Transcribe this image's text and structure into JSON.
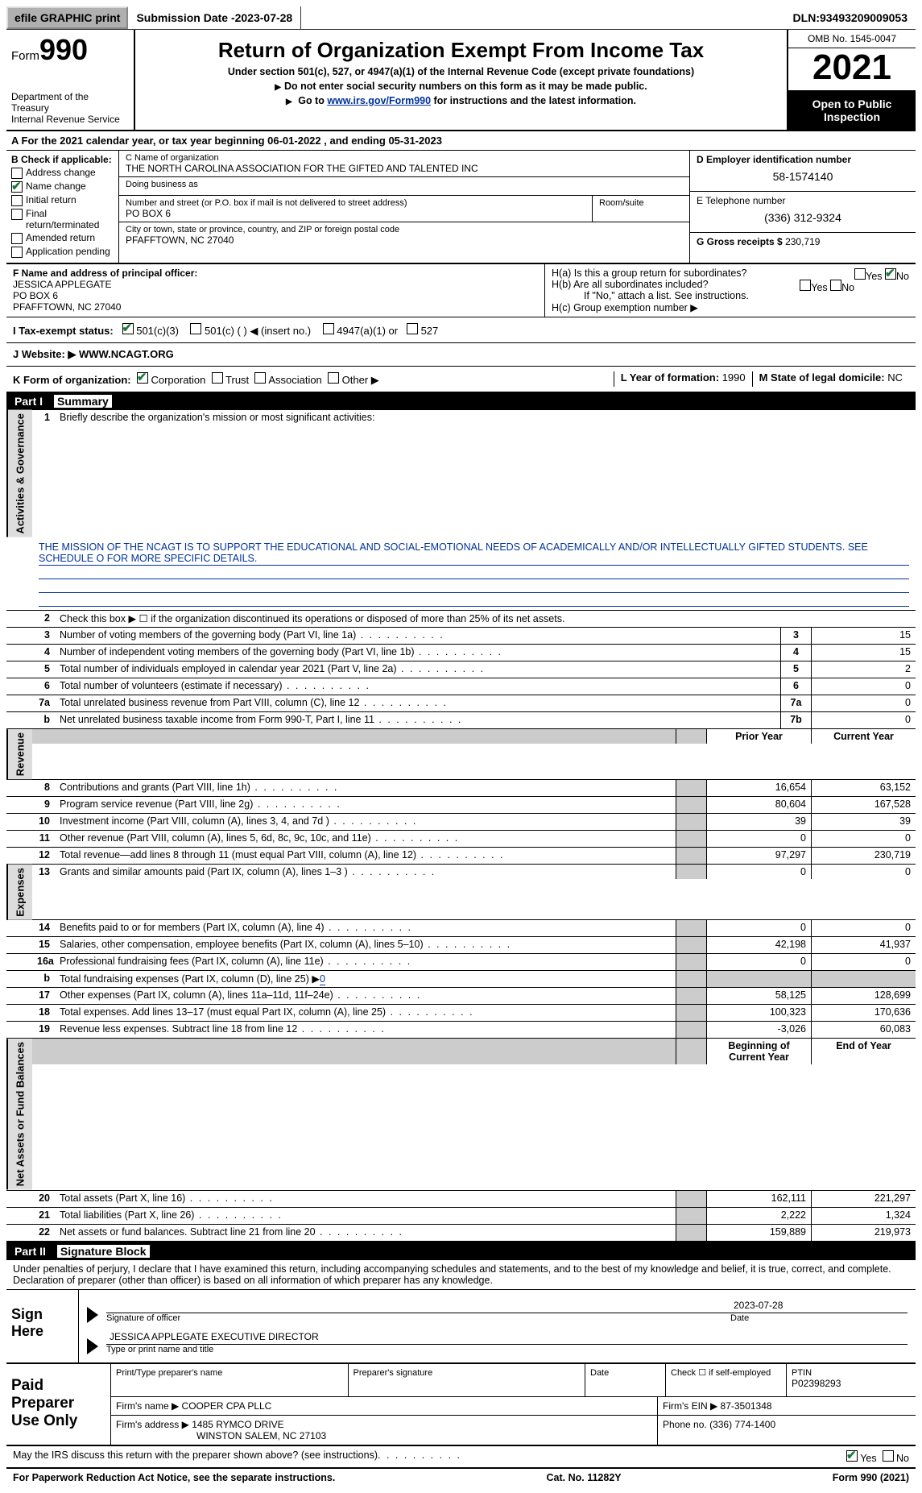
{
  "topbar": {
    "efile": "efile GRAPHIC print",
    "submission_label": "Submission Date - ",
    "submission_date": "2023-07-28",
    "dln_label": "DLN: ",
    "dln": "93493209009053"
  },
  "header": {
    "form_prefix": "Form",
    "form_number": "990",
    "dept": "Department of the Treasury",
    "irs": "Internal Revenue Service",
    "title": "Return of Organization Exempt From Income Tax",
    "sub1": "Under section 501(c), 527, or 4947(a)(1) of the Internal Revenue Code (except private foundations)",
    "sub2": "Do not enter social security numbers on this form as it may be made public.",
    "sub3_pre": "Go to ",
    "sub3_link": "www.irs.gov/Form990",
    "sub3_post": " for instructions and the latest information.",
    "omb": "OMB No. 1545-0047",
    "year": "2021",
    "open": "Open to Public Inspection"
  },
  "lineA": {
    "pre": "A For the 2021 calendar year, or tax year beginning ",
    "begin": "06-01-2022",
    "mid": "   , and ending ",
    "end": "05-31-2023"
  },
  "colB": {
    "label": "B Check if applicable:",
    "items": [
      {
        "text": "Address change",
        "checked": false
      },
      {
        "text": "Name change",
        "checked": true
      },
      {
        "text": "Initial return",
        "checked": false
      },
      {
        "text": "Final return/terminated",
        "checked": false
      },
      {
        "text": "Amended return",
        "checked": false
      },
      {
        "text": "Application pending",
        "checked": false
      }
    ]
  },
  "colC": {
    "name_lbl": "C Name of organization",
    "name": "THE NORTH CAROLINA ASSOCIATION FOR THE GIFTED AND TALENTED INC",
    "dba_lbl": "Doing business as",
    "dba": "",
    "addr_lbl": "Number and street (or P.O. box if mail is not delivered to street address)",
    "room_lbl": "Room/suite",
    "addr": "PO BOX 6",
    "city_lbl": "City or town, state or province, country, and ZIP or foreign postal code",
    "city": "PFAFFTOWN, NC  27040"
  },
  "colD": {
    "ein_lbl": "D Employer identification number",
    "ein": "58-1574140",
    "phone_lbl": "E Telephone number",
    "phone": "(336) 312-9324",
    "gross_lbl": "G Gross receipts $ ",
    "gross": "230,719"
  },
  "secF": {
    "lbl": "F Name and address of principal officer:",
    "name": "JESSICA APPLEGATE",
    "addr1": "PO BOX 6",
    "addr2": "PFAFFTOWN, NC  27040"
  },
  "secH": {
    "ha": "H(a)  Is this a group return for subordinates?",
    "hb": "H(b)  Are all subordinates included?",
    "hb2": "If \"No,\" attach a list. See instructions.",
    "hc": "H(c)  Group exemption number ▶",
    "ha_no": true
  },
  "rowI": {
    "lbl": "I   Tax-exempt status:",
    "o1": "501(c)(3)",
    "o2": "501(c) (  ) ◀ (insert no.)",
    "o3": "4947(a)(1) or",
    "o4": "527"
  },
  "rowJ": {
    "lbl": "J   Website: ▶ ",
    "val": "WWW.NCAGT.ORG"
  },
  "rowK": {
    "lbl": "K Form of organization:",
    "o1": "Corporation",
    "o2": "Trust",
    "o3": "Association",
    "o4": "Other ▶",
    "L_lbl": "L Year of formation: ",
    "L_val": "1990",
    "M_lbl": "M State of legal domicile: ",
    "M_val": "NC"
  },
  "part1": {
    "bar": "Part I",
    "title": "Summary",
    "line1_lbl": "Briefly describe the organization's mission or most significant activities:",
    "mission": "THE MISSION OF THE NCAGT IS TO SUPPORT THE EDUCATIONAL AND SOCIAL-EMOTIONAL NEEDS OF ACADEMICALLY AND/OR INTELLECTUALLY GIFTED STUDENTS. SEE SCHEDULE O FOR MORE SPECIFIC DETAILS.",
    "line2": "Check this box ▶ ☐ if the organization discontinued its operations or disposed of more than 25% of its net assets.",
    "tab_gov": "Activities & Governance",
    "tab_rev": "Revenue",
    "tab_exp": "Expenses",
    "tab_net": "Net Assets or Fund Balances",
    "col_prior": "Prior Year",
    "col_curr": "Current Year",
    "col_beg": "Beginning of Current Year",
    "col_end": "End of Year",
    "rows_gov": [
      {
        "n": "3",
        "t": "Number of voting members of the governing body (Part VI, line 1a)",
        "v": "15"
      },
      {
        "n": "4",
        "t": "Number of independent voting members of the governing body (Part VI, line 1b)",
        "v": "15"
      },
      {
        "n": "5",
        "t": "Total number of individuals employed in calendar year 2021 (Part V, line 2a)",
        "v": "2"
      },
      {
        "n": "6",
        "t": "Total number of volunteers (estimate if necessary)",
        "v": "0"
      },
      {
        "n": "7a",
        "t": "Total unrelated business revenue from Part VIII, column (C), line 12",
        "v": "0"
      },
      {
        "n": "7b",
        "t": "Net unrelated business taxable income from Form 990-T, Part I, line 11",
        "k": "b",
        "v": "0"
      }
    ],
    "rows_rev": [
      {
        "n": "8",
        "t": "Contributions and grants (Part VIII, line 1h)",
        "p": "16,654",
        "c": "63,152"
      },
      {
        "n": "9",
        "t": "Program service revenue (Part VIII, line 2g)",
        "p": "80,604",
        "c": "167,528"
      },
      {
        "n": "10",
        "t": "Investment income (Part VIII, column (A), lines 3, 4, and 7d )",
        "p": "39",
        "c": "39"
      },
      {
        "n": "11",
        "t": "Other revenue (Part VIII, column (A), lines 5, 6d, 8c, 9c, 10c, and 11e)",
        "p": "0",
        "c": "0"
      },
      {
        "n": "12",
        "t": "Total revenue—add lines 8 through 11 (must equal Part VIII, column (A), line 12)",
        "p": "97,297",
        "c": "230,719"
      }
    ],
    "rows_exp": [
      {
        "n": "13",
        "t": "Grants and similar amounts paid (Part IX, column (A), lines 1–3 )",
        "p": "0",
        "c": "0"
      },
      {
        "n": "14",
        "t": "Benefits paid to or for members (Part IX, column (A), line 4)",
        "p": "0",
        "c": "0"
      },
      {
        "n": "15",
        "t": "Salaries, other compensation, employee benefits (Part IX, column (A), lines 5–10)",
        "p": "42,198",
        "c": "41,937"
      },
      {
        "n": "16a",
        "t": "Professional fundraising fees (Part IX, column (A), line 11e)",
        "p": "0",
        "c": "0"
      }
    ],
    "row16b": {
      "k": "b",
      "t": "Total fundraising expenses (Part IX, column (D), line 25) ▶",
      "v": "0"
    },
    "rows_exp2": [
      {
        "n": "17",
        "t": "Other expenses (Part IX, column (A), lines 11a–11d, 11f–24e)",
        "p": "58,125",
        "c": "128,699"
      },
      {
        "n": "18",
        "t": "Total expenses. Add lines 13–17 (must equal Part IX, column (A), line 25)",
        "p": "100,323",
        "c": "170,636"
      },
      {
        "n": "19",
        "t": "Revenue less expenses. Subtract line 18 from line 12",
        "p": "-3,026",
        "c": "60,083"
      }
    ],
    "rows_net": [
      {
        "n": "20",
        "t": "Total assets (Part X, line 16)",
        "p": "162,111",
        "c": "221,297"
      },
      {
        "n": "21",
        "t": "Total liabilities (Part X, line 26)",
        "p": "2,222",
        "c": "1,324"
      },
      {
        "n": "22",
        "t": "Net assets or fund balances. Subtract line 21 from line 20",
        "p": "159,889",
        "c": "219,973"
      }
    ]
  },
  "part2": {
    "bar": "Part II",
    "title": "Signature Block",
    "decl": "Under penalties of perjury, I declare that I have examined this return, including accompanying schedules and statements, and to the best of my knowledge and belief, it is true, correct, and complete. Declaration of preparer (other than officer) is based on all information of which preparer has any knowledge.",
    "sign_here": "Sign Here",
    "sig_officer": "Signature of officer",
    "sig_date": "Date",
    "sig_date_val": "2023-07-28",
    "sig_name": "JESSICA APPLEGATE  EXECUTIVE DIRECTOR",
    "sig_name_lbl": "Type or print name and title",
    "prep": "Paid Preparer Use Only",
    "prep_name_lbl": "Print/Type preparer's name",
    "prep_sig_lbl": "Preparer's signature",
    "prep_date_lbl": "Date",
    "prep_self": "Check ☐ if self-employed",
    "ptin_lbl": "PTIN",
    "ptin": "P02398293",
    "firm_name_lbl": "Firm's name   ▶ ",
    "firm_name": "COOPER CPA PLLC",
    "firm_ein_lbl": "Firm's EIN ▶ ",
    "firm_ein": "87-3501348",
    "firm_addr_lbl": "Firm's address ▶ ",
    "firm_addr1": "1485 RYMCO DRIVE",
    "firm_addr2": "WINSTON SALEM, NC  27103",
    "firm_phone_lbl": "Phone no. ",
    "firm_phone": "(336) 774-1400",
    "discuss": "May the IRS discuss this return with the preparer shown above? (see instructions)",
    "discuss_yes": true
  },
  "footer": {
    "pra": "For Paperwork Reduction Act Notice, see the separate instructions.",
    "cat": "Cat. No. 11282Y",
    "form": "Form 990 (2021)"
  }
}
